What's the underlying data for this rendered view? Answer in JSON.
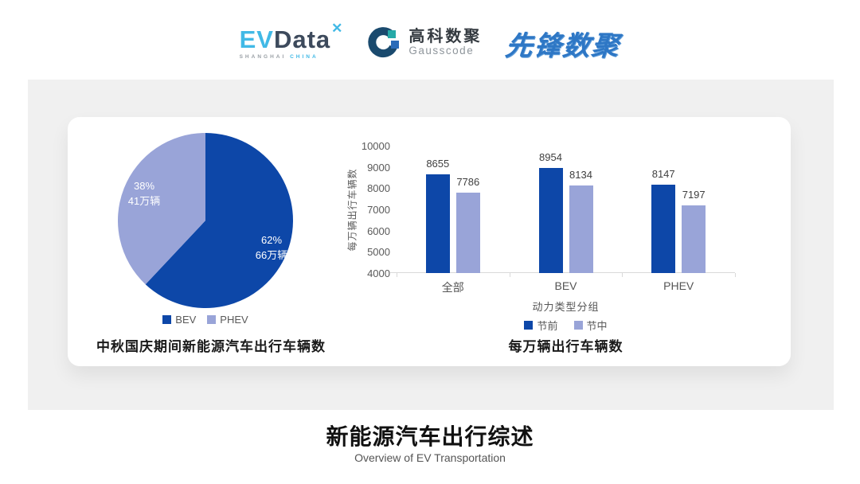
{
  "header": {
    "evdata": {
      "ev": "EV",
      "data": "Data",
      "mark": "✕",
      "sub_left": "SHANGHAI",
      "sub_right": "CHINA"
    },
    "gausscode": {
      "cn": "高科数聚",
      "en": "Gausscode"
    },
    "xianfeng": {
      "text": "先锋数聚"
    }
  },
  "colors": {
    "series_dark": "#0d47a8",
    "series_light": "#99a4d8",
    "band_gray": "#f0f0f0",
    "evdata_blue": "#41b9e6",
    "xianfeng_blue": "#2e77c5"
  },
  "chart_data": [
    {
      "type": "pie",
      "title": "中秋国庆期间新能源汽车出行车辆数",
      "slices": [
        {
          "label": "BEV",
          "percent": 62,
          "value_label": "66万辆",
          "color": "#0d47a8"
        },
        {
          "label": "PHEV",
          "percent": 38,
          "value_label": "41万辆",
          "color": "#99a4d8"
        }
      ],
      "legend_position": "bottom"
    },
    {
      "type": "bar",
      "title": "每万辆出行车辆数",
      "categories": [
        "全部",
        "BEV",
        "PHEV"
      ],
      "series": [
        {
          "name": "节前",
          "values": [
            8655,
            8954,
            8147
          ],
          "color": "#0d47a8"
        },
        {
          "name": "节中",
          "values": [
            7786,
            8134,
            7197
          ],
          "color": "#99a4d8"
        }
      ],
      "xlabel": "动力类型分组",
      "ylabel": "每万辆出行车辆数",
      "ylim": [
        4000,
        10000
      ],
      "yticks": [
        10000,
        9000,
        8000,
        7000,
        6000,
        5000,
        4000
      ],
      "grid": false,
      "legend_position": "bottom"
    }
  ],
  "footer": {
    "title": "新能源汽车出行综述",
    "subtitle": "Overview of EV Transportation"
  }
}
